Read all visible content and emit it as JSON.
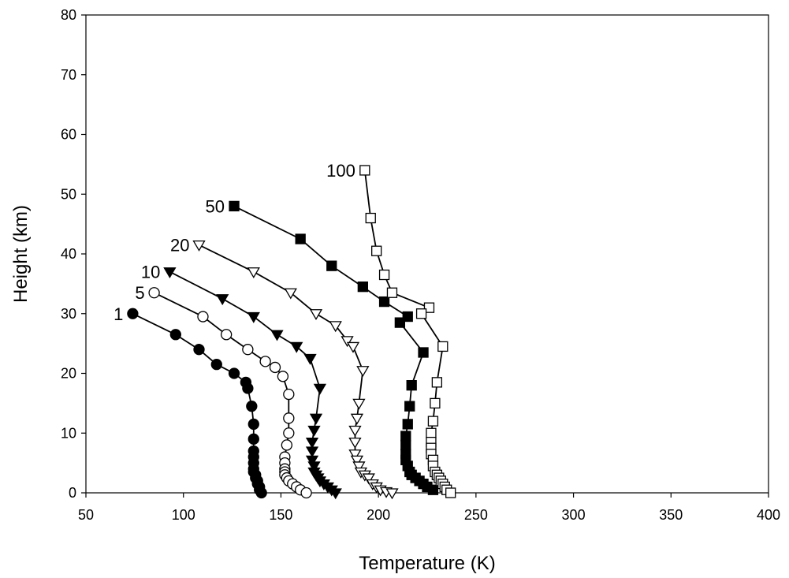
{
  "chart_data": {
    "type": "scatter",
    "title": "",
    "xlabel": "Temperature (K)",
    "ylabel": "Height (km)",
    "xlim": [
      50,
      400
    ],
    "ylim": [
      0,
      80
    ],
    "xticks": [
      50,
      100,
      150,
      200,
      250,
      300,
      350,
      400
    ],
    "yticks": [
      0,
      10,
      20,
      30,
      40,
      50,
      60,
      70,
      80
    ],
    "grid": false,
    "series": [
      {
        "name": "1",
        "marker": "filled-circle",
        "x": [
          74,
          96,
          108,
          117,
          126,
          132,
          133,
          135,
          136,
          136,
          136,
          136,
          136,
          136,
          136,
          137,
          137,
          138,
          138,
          139,
          139,
          140
        ],
        "y": [
          30,
          26.5,
          24,
          21.5,
          20,
          18.5,
          17.5,
          14.5,
          11.5,
          9,
          7,
          6,
          5,
          4,
          3.5,
          3,
          2.5,
          2,
          1.5,
          1,
          0.5,
          0
        ]
      },
      {
        "name": "5",
        "marker": "open-circle",
        "x": [
          85,
          110,
          122,
          133,
          142,
          147,
          151,
          154,
          154,
          154,
          153,
          152,
          152,
          152,
          152,
          152,
          153,
          154,
          156,
          158,
          160,
          163
        ],
        "y": [
          33.5,
          29.5,
          26.5,
          24,
          22,
          21,
          19.5,
          16.5,
          12.5,
          10,
          8,
          6,
          5,
          4,
          3.5,
          3,
          2.5,
          2,
          1.5,
          1,
          0.5,
          0
        ]
      },
      {
        "name": "10",
        "marker": "filled-triangle-down",
        "x": [
          93,
          120,
          136,
          148,
          158,
          165,
          170,
          168,
          167,
          166,
          166,
          166,
          167,
          167,
          168,
          169,
          170,
          172,
          174,
          176,
          178
        ],
        "y": [
          37,
          32.5,
          29.5,
          26.5,
          24.5,
          22.5,
          17.5,
          12.5,
          10.5,
          8.5,
          7,
          5.5,
          4.5,
          3.5,
          3,
          2.5,
          2,
          1.5,
          1,
          0.5,
          0
        ]
      },
      {
        "name": "20",
        "marker": "open-triangle-down",
        "x": [
          108,
          136,
          155,
          168,
          178,
          184,
          187,
          192,
          190,
          189,
          188,
          188,
          188,
          189,
          190,
          191,
          193,
          195,
          197,
          199,
          201,
          204,
          207
        ],
        "y": [
          41.5,
          37,
          33.5,
          30,
          28,
          25.5,
          24.5,
          20.5,
          15,
          12.5,
          10.5,
          8.5,
          6.5,
          5.5,
          4.5,
          3.5,
          3,
          2.5,
          1.5,
          1,
          0.5,
          0.2,
          0
        ]
      },
      {
        "name": "50",
        "marker": "filled-square",
        "x": [
          126,
          160,
          176,
          192,
          203,
          215,
          211,
          223,
          217,
          216,
          215,
          214,
          214,
          214,
          214,
          215,
          216,
          217,
          219,
          221,
          223,
          225,
          228
        ],
        "y": [
          48,
          42.5,
          38,
          34.5,
          32,
          29.5,
          28.5,
          23.5,
          18,
          14.5,
          11.5,
          9.5,
          8,
          6.5,
          5.5,
          4.5,
          3.5,
          3,
          2.5,
          2,
          1.5,
          1,
          0.5
        ]
      },
      {
        "name": "100",
        "marker": "open-square",
        "x": [
          193,
          196,
          199,
          203,
          207,
          226,
          222,
          233,
          230,
          229,
          228,
          227,
          227,
          227,
          227,
          228,
          228,
          229,
          230,
          231,
          232,
          233,
          234,
          235,
          237
        ],
        "y": [
          54,
          46,
          40.5,
          36.5,
          33.5,
          31,
          30,
          24.5,
          18.5,
          15,
          12,
          10,
          8.5,
          7.5,
          6.5,
          5.5,
          4.5,
          3.5,
          3,
          2.5,
          2,
          1.5,
          1,
          0.5,
          0
        ]
      }
    ]
  }
}
